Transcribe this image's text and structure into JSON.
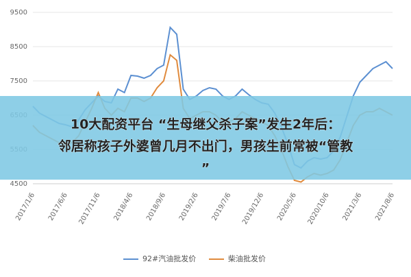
{
  "chart_data": {
    "type": "line",
    "categories": [
      "2017/1/6",
      null,
      null,
      null,
      null,
      "2017/6/6",
      null,
      null,
      null,
      null,
      "2017/11/6",
      null,
      null,
      null,
      null,
      "2018/4/6",
      null,
      null,
      null,
      null,
      "2018/9/6",
      null,
      null,
      null,
      null,
      "2019/2/6",
      null,
      null,
      null,
      null,
      "2019/7/6",
      null,
      null,
      null,
      null,
      "2019/12/6",
      null,
      null,
      null,
      null,
      "2020/5/6",
      null,
      null,
      null,
      null,
      "2020/10/6",
      null,
      null,
      null,
      null,
      "2021/3/6",
      null,
      null,
      null,
      null,
      "2021/8/6"
    ],
    "series": [
      {
        "name": "92#汽油批发价",
        "color": "#5b8fd1",
        "values": [
          6760,
          6560,
          6460,
          6360,
          6260,
          6220,
          6160,
          6360,
          6660,
          6860,
          7060,
          6900,
          6860,
          7260,
          7160,
          7660,
          7640,
          7580,
          7660,
          7860,
          7960,
          9060,
          8860,
          7260,
          6960,
          7060,
          7220,
          7300,
          7260,
          7060,
          6960,
          7060,
          7260,
          7100,
          6960,
          6860,
          6820,
          6560,
          6160,
          5660,
          5060,
          4960,
          5160,
          5260,
          5220,
          5260,
          5460,
          5860,
          6460,
          7060,
          7460,
          7660,
          7860,
          7960,
          8060,
          7860
        ]
      },
      {
        "name": "柴油批发价",
        "color": "#e08a3c",
        "values": [
          6200,
          6000,
          5900,
          5800,
          5700,
          5650,
          5700,
          5900,
          6300,
          6700,
          7160,
          6700,
          6500,
          6700,
          6600,
          7000,
          7000,
          6900,
          7000,
          7300,
          7500,
          8260,
          8100,
          6700,
          6400,
          6500,
          6600,
          6600,
          6500,
          6300,
          6300,
          6400,
          6600,
          6500,
          6400,
          6300,
          6200,
          5900,
          5500,
          5000,
          4600,
          4550,
          4700,
          4800,
          4750,
          4800,
          4900,
          5200,
          5700,
          6200,
          6500,
          6600,
          6600,
          6700,
          6600,
          6500
        ]
      }
    ],
    "ylim": [
      4500,
      9500
    ],
    "yticks": [
      4500,
      5500,
      6500,
      7500,
      8500,
      9500
    ],
    "grid": true,
    "legend": "bottom"
  },
  "banner": {
    "lines": [
      "10大配资平台 “生母继父杀子案”发生2年后：",
      "邻居称孩子外婆曾几月不出门，男孩生前常被“管教",
      "”"
    ]
  }
}
